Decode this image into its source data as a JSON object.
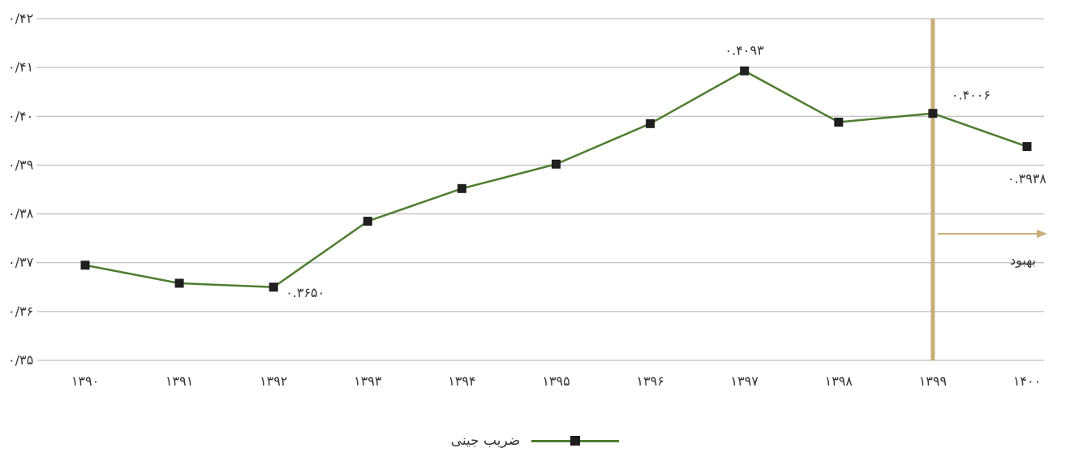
{
  "chart_data": {
    "type": "line",
    "categories": [
      "۱۳۹۰",
      "۱۳۹۱",
      "۱۳۹۲",
      "۱۳۹۳",
      "۱۳۹۴",
      "۱۳۹۵",
      "۱۳۹۶",
      "۱۳۹۷",
      "۱۳۹۸",
      "۱۳۹۹",
      "۱۴۰۰"
    ],
    "series": [
      {
        "name": "ضریب جینی",
        "values": [
          0.3695,
          0.3658,
          0.365,
          0.3785,
          0.3852,
          0.3902,
          0.3985,
          0.4093,
          0.3988,
          0.4006,
          0.3938
        ],
        "color": "#4e7d30"
      }
    ],
    "ylim": [
      0.35,
      0.42
    ],
    "y_ticks": [
      0.35,
      0.36,
      0.37,
      0.38,
      0.39,
      0.4,
      0.41,
      0.42
    ],
    "y_tick_labels": [
      "۰/۳۵",
      "۰/۳۶",
      "۰/۳۷",
      "۰/۳۸",
      "۰/۳۹",
      "۰/۴۰",
      "۰/۴۱",
      "۰/۴۲"
    ],
    "data_labels": [
      {
        "index": 2,
        "text": "۰.۳۶۵۰",
        "position": "right-below"
      },
      {
        "index": 7,
        "text": "۰.۴۰۹۳",
        "position": "above"
      },
      {
        "index": 9,
        "text": "۰.۴۰۰۶",
        "position": "above-right"
      },
      {
        "index": 10,
        "text": "۰.۳۹۳۸",
        "position": "below"
      }
    ],
    "marker_color": "#1f1f1f",
    "grid": true,
    "grid_color": "#b0b0b0",
    "legend_placement": "bottom-center",
    "annotation": {
      "x_index": 9,
      "text": "بهبود",
      "line_color": "#c9ad7a",
      "arrow_color": "#c9ad7a"
    }
  }
}
